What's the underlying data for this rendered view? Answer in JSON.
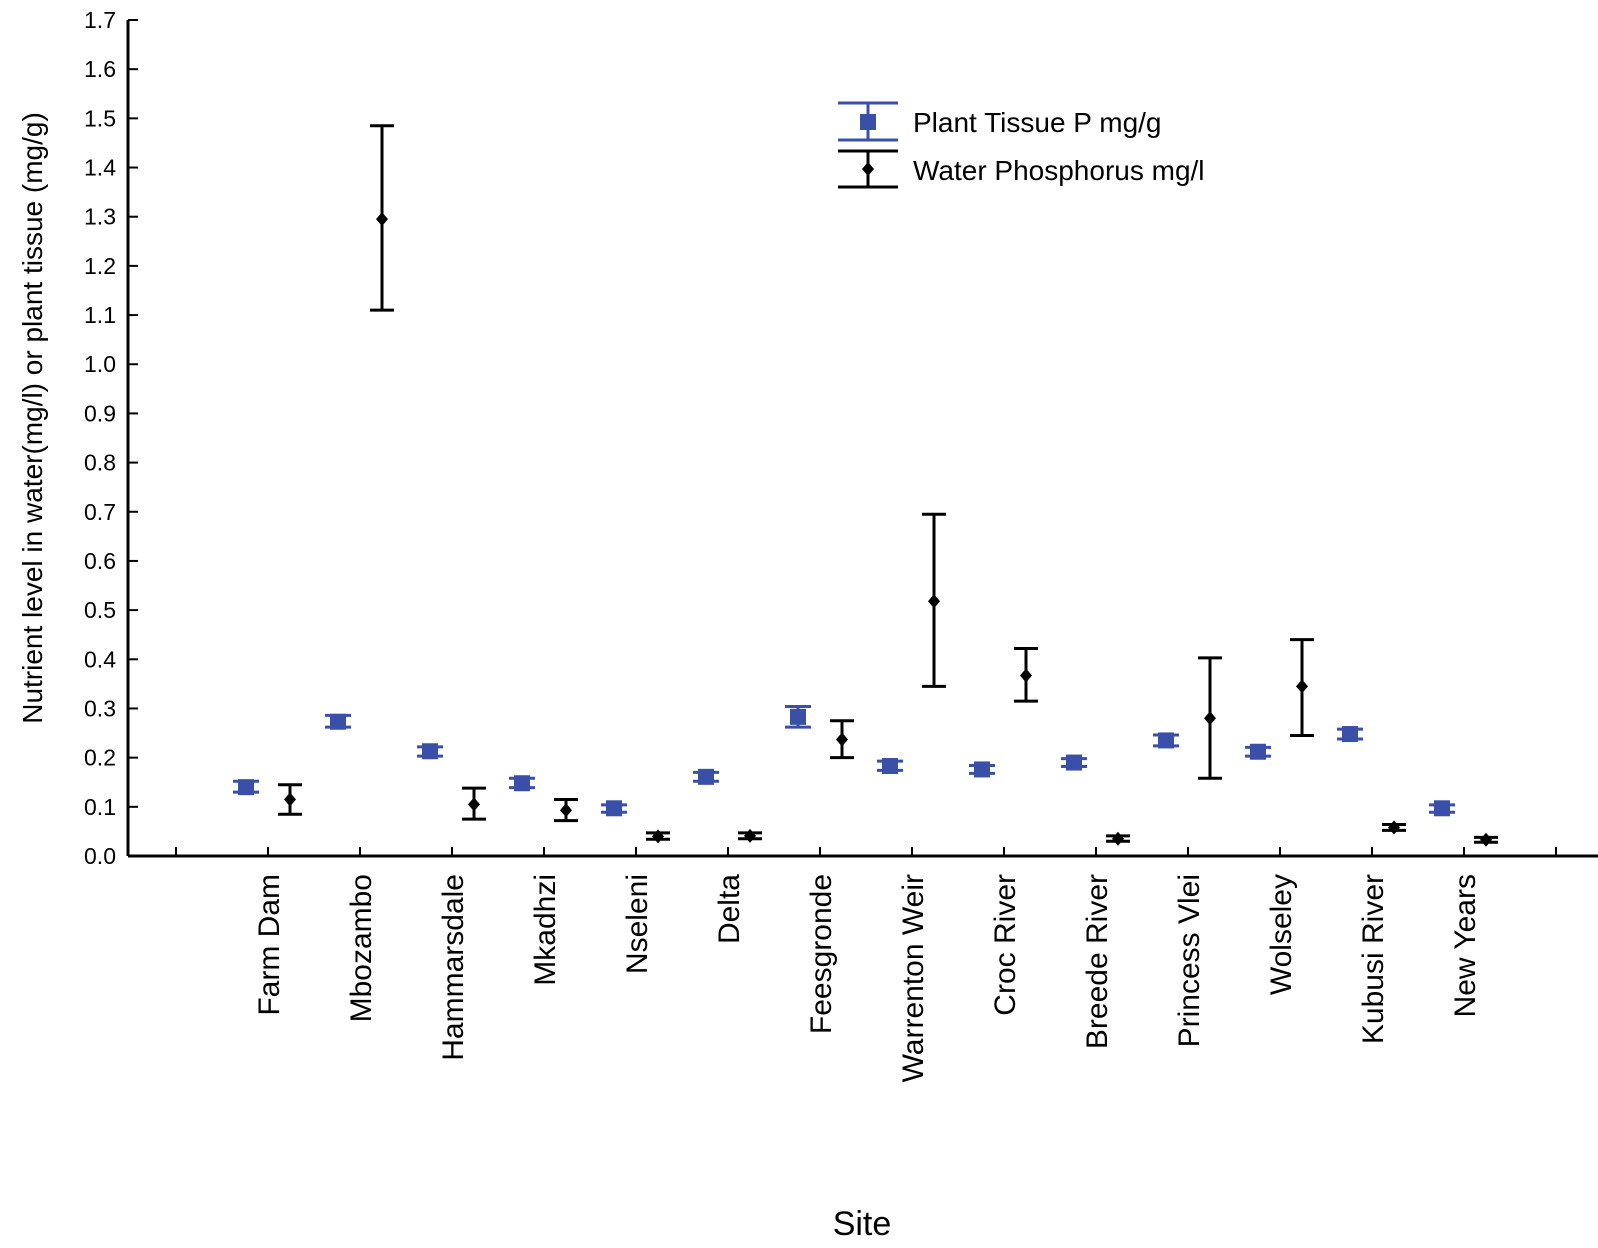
{
  "chart_data": {
    "type": "scatter",
    "title": "",
    "xlabel": "Site",
    "ylabel": "Nutrient level in water(mg/l) or plant tissue (mg/g)",
    "categories": [
      "Farm Dam",
      "Mbozambo",
      "Hammarsdale",
      "Mkadhzi",
      "Nseleni",
      "Delta",
      "Feesgronde",
      "Warrenton Weir",
      "Croc River",
      "Breede River",
      "Princess Vlei",
      "Wolseley",
      "Kubusi River",
      "New Years"
    ],
    "ylim": [
      0,
      1.7
    ],
    "yticks": [
      "0.0",
      "0.1",
      "0.2",
      "0.3",
      "0.4",
      "0.5",
      "0.6",
      "0.7",
      "0.8",
      "0.9",
      "1.0",
      "1.1",
      "1.2",
      "1.3",
      "1.4",
      "1.5",
      "1.6",
      "1.7"
    ],
    "grid": false,
    "legend_position": "top-right",
    "series": [
      {
        "name": "Plant Tissue P mg/g",
        "color": "#3a4fa8",
        "marker": "square",
        "values": [
          0.14,
          0.273,
          0.213,
          0.148,
          0.097,
          0.161,
          0.283,
          0.183,
          0.176,
          0.19,
          0.235,
          0.212,
          0.248,
          0.097
        ],
        "lower": [
          0.13,
          0.262,
          0.203,
          0.139,
          0.089,
          0.152,
          0.262,
          0.174,
          0.168,
          0.182,
          0.224,
          0.203,
          0.238,
          0.089
        ],
        "upper": [
          0.152,
          0.286,
          0.222,
          0.158,
          0.104,
          0.17,
          0.304,
          0.193,
          0.184,
          0.198,
          0.246,
          0.221,
          0.258,
          0.104
        ]
      },
      {
        "name": "Water Phosphorus mg/l",
        "color": "#000000",
        "marker": "diamond",
        "values": [
          0.115,
          1.295,
          0.105,
          0.093,
          0.04,
          0.041,
          0.237,
          0.518,
          0.367,
          0.035,
          0.28,
          0.345,
          0.058,
          0.033
        ],
        "lower": [
          0.085,
          1.11,
          0.075,
          0.072,
          0.034,
          0.035,
          0.2,
          0.345,
          0.315,
          0.03,
          0.158,
          0.245,
          0.052,
          0.028
        ],
        "upper": [
          0.145,
          1.485,
          0.138,
          0.115,
          0.047,
          0.047,
          0.275,
          0.695,
          0.422,
          0.041,
          0.403,
          0.44,
          0.064,
          0.038
        ]
      }
    ]
  }
}
